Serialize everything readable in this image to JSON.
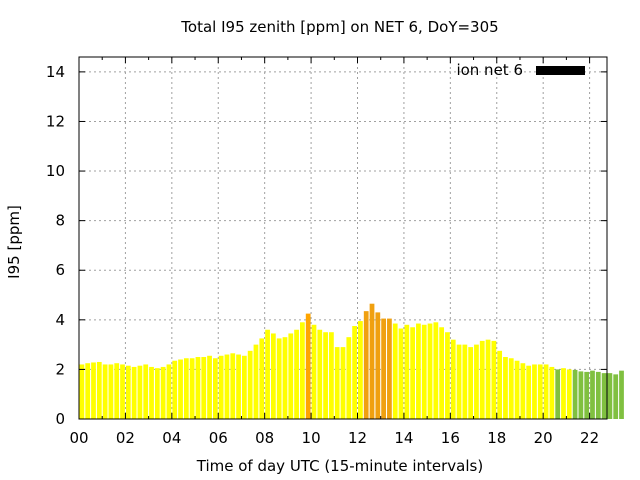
{
  "chart_data": {
    "type": "bar",
    "title": "Total I95 zenith [ppm] on NET 6, DoY=305",
    "xlabel": "Time of day UTC (15-minute intervals)",
    "ylabel": "I95 [ppm]",
    "ylim": [
      0,
      14.6
    ],
    "xlim": [
      0,
      22.75
    ],
    "yticks": [
      "0",
      "2",
      "4",
      "6",
      "8",
      "10",
      "12",
      "14"
    ],
    "xticks": [
      "00",
      "02",
      "04",
      "06",
      "08",
      "10",
      "12",
      "14",
      "16",
      "18",
      "20",
      "22"
    ],
    "grid": true,
    "legend": {
      "label": "ion net 6",
      "position": "top-right",
      "color": "#000000"
    },
    "colors": {
      "yellow": "#ffff00",
      "orange": "#ffa500",
      "dark_orange": "#f0a010",
      "green": "#80c040"
    },
    "x_step_hours": 0.25,
    "values": [
      2.2,
      2.25,
      2.28,
      2.3,
      2.2,
      2.2,
      2.25,
      2.2,
      2.15,
      2.1,
      2.15,
      2.2,
      2.1,
      2.05,
      2.1,
      2.2,
      2.35,
      2.4,
      2.45,
      2.45,
      2.5,
      2.5,
      2.55,
      2.45,
      2.55,
      2.6,
      2.65,
      2.6,
      2.55,
      2.75,
      3.0,
      3.25,
      3.6,
      3.45,
      3.25,
      3.3,
      3.45,
      3.6,
      3.9,
      4.25,
      3.8,
      3.6,
      3.5,
      3.5,
      2.9,
      2.9,
      3.3,
      3.75,
      3.95,
      4.35,
      4.65,
      4.3,
      4.05,
      4.05,
      3.85,
      3.65,
      3.8,
      3.7,
      3.85,
      3.8,
      3.85,
      3.9,
      3.7,
      3.5,
      3.2,
      3.0,
      3.0,
      2.9,
      3.0,
      3.15,
      3.2,
      3.15,
      2.75,
      2.5,
      2.45,
      2.35,
      2.25,
      2.15,
      2.2,
      2.2,
      2.2,
      2.1,
      2.0,
      2.05,
      2.0,
      1.98,
      1.92,
      1.9,
      1.95,
      1.9,
      1.85,
      1.85,
      1.8,
      1.95
    ],
    "bar_colors": [
      "yellow",
      "yellow",
      "yellow",
      "yellow",
      "yellow",
      "yellow",
      "yellow",
      "yellow",
      "yellow",
      "yellow",
      "yellow",
      "yellow",
      "yellow",
      "yellow",
      "yellow",
      "yellow",
      "yellow",
      "yellow",
      "yellow",
      "yellow",
      "yellow",
      "yellow",
      "yellow",
      "yellow",
      "yellow",
      "yellow",
      "yellow",
      "yellow",
      "yellow",
      "yellow",
      "yellow",
      "yellow",
      "yellow",
      "yellow",
      "yellow",
      "yellow",
      "yellow",
      "yellow",
      "yellow",
      "orange",
      "yellow",
      "yellow",
      "yellow",
      "yellow",
      "yellow",
      "yellow",
      "yellow",
      "yellow",
      "yellow",
      "dark_orange",
      "dark_orange",
      "dark_orange",
      "dark_orange",
      "dark_orange",
      "yellow",
      "yellow",
      "yellow",
      "yellow",
      "yellow",
      "yellow",
      "yellow",
      "yellow",
      "yellow",
      "yellow",
      "yellow",
      "yellow",
      "yellow",
      "yellow",
      "yellow",
      "yellow",
      "yellow",
      "yellow",
      "yellow",
      "yellow",
      "yellow",
      "yellow",
      "yellow",
      "yellow",
      "yellow",
      "yellow",
      "yellow",
      "yellow",
      "green",
      "yellow",
      "yellow",
      "green",
      "green",
      "green",
      "green",
      "green",
      "green",
      "green",
      "green",
      "green"
    ]
  }
}
